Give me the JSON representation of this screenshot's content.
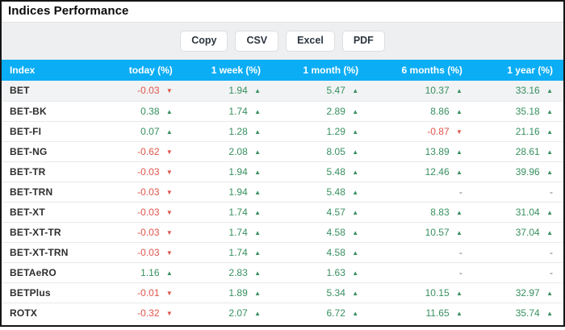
{
  "title": "Indices Performance",
  "toolbar": {
    "buttons": [
      {
        "label": "Copy"
      },
      {
        "label": "CSV"
      },
      {
        "label": "Excel"
      },
      {
        "label": "PDF"
      }
    ]
  },
  "colors": {
    "header_bg": "#0badf5",
    "positive": "#37905f",
    "negative": "#e0554b",
    "toolbar_bg": "#edeff0",
    "highlight_row_bg": "#f1f3f4"
  },
  "table": {
    "columns": [
      {
        "label": "Index"
      },
      {
        "label": "today (%)"
      },
      {
        "label": "1 week (%)"
      },
      {
        "label": "1 month (%)"
      },
      {
        "label": "6 months (%)"
      },
      {
        "label": "1 year (%)"
      }
    ],
    "rows": [
      {
        "index": "BET",
        "highlighted": true,
        "values": [
          {
            "v": "-0.03",
            "dir": "down"
          },
          {
            "v": "1.94",
            "dir": "up"
          },
          {
            "v": "5.47",
            "dir": "up"
          },
          {
            "v": "10.37",
            "dir": "up"
          },
          {
            "v": "33.16",
            "dir": "up"
          }
        ]
      },
      {
        "index": "BET-BK",
        "highlighted": false,
        "values": [
          {
            "v": "0.38",
            "dir": "up"
          },
          {
            "v": "1.74",
            "dir": "up"
          },
          {
            "v": "2.89",
            "dir": "up"
          },
          {
            "v": "8.86",
            "dir": "up"
          },
          {
            "v": "35.18",
            "dir": "up"
          }
        ]
      },
      {
        "index": "BET-FI",
        "highlighted": false,
        "values": [
          {
            "v": "0.07",
            "dir": "up"
          },
          {
            "v": "1.28",
            "dir": "up"
          },
          {
            "v": "1.29",
            "dir": "up"
          },
          {
            "v": "-0.87",
            "dir": "down"
          },
          {
            "v": "21.16",
            "dir": "up"
          }
        ]
      },
      {
        "index": "BET-NG",
        "highlighted": false,
        "values": [
          {
            "v": "-0.62",
            "dir": "down"
          },
          {
            "v": "2.08",
            "dir": "up"
          },
          {
            "v": "8.05",
            "dir": "up"
          },
          {
            "v": "13.89",
            "dir": "up"
          },
          {
            "v": "28.61",
            "dir": "up"
          }
        ]
      },
      {
        "index": "BET-TR",
        "highlighted": false,
        "values": [
          {
            "v": "-0.03",
            "dir": "down"
          },
          {
            "v": "1.94",
            "dir": "up"
          },
          {
            "v": "5.48",
            "dir": "up"
          },
          {
            "v": "12.46",
            "dir": "up"
          },
          {
            "v": "39.96",
            "dir": "up"
          }
        ]
      },
      {
        "index": "BET-TRN",
        "highlighted": false,
        "values": [
          {
            "v": "-0.03",
            "dir": "down"
          },
          {
            "v": "1.94",
            "dir": "up"
          },
          {
            "v": "5.48",
            "dir": "up"
          },
          {
            "v": "-",
            "dir": "none"
          },
          {
            "v": "-",
            "dir": "none"
          }
        ]
      },
      {
        "index": "BET-XT",
        "highlighted": false,
        "values": [
          {
            "v": "-0.03",
            "dir": "down"
          },
          {
            "v": "1.74",
            "dir": "up"
          },
          {
            "v": "4.57",
            "dir": "up"
          },
          {
            "v": "8.83",
            "dir": "up"
          },
          {
            "v": "31.04",
            "dir": "up"
          }
        ]
      },
      {
        "index": "BET-XT-TR",
        "highlighted": false,
        "values": [
          {
            "v": "-0.03",
            "dir": "down"
          },
          {
            "v": "1.74",
            "dir": "up"
          },
          {
            "v": "4.58",
            "dir": "up"
          },
          {
            "v": "10.57",
            "dir": "up"
          },
          {
            "v": "37.04",
            "dir": "up"
          }
        ]
      },
      {
        "index": "BET-XT-TRN",
        "highlighted": false,
        "values": [
          {
            "v": "-0.03",
            "dir": "down"
          },
          {
            "v": "1.74",
            "dir": "up"
          },
          {
            "v": "4.58",
            "dir": "up"
          },
          {
            "v": "-",
            "dir": "none"
          },
          {
            "v": "-",
            "dir": "none"
          }
        ]
      },
      {
        "index": "BETAeRO",
        "highlighted": false,
        "values": [
          {
            "v": "1.16",
            "dir": "up"
          },
          {
            "v": "2.83",
            "dir": "up"
          },
          {
            "v": "1.63",
            "dir": "up"
          },
          {
            "v": "-",
            "dir": "none"
          },
          {
            "v": "-",
            "dir": "none"
          }
        ]
      },
      {
        "index": "BETPlus",
        "highlighted": false,
        "values": [
          {
            "v": "-0.01",
            "dir": "down"
          },
          {
            "v": "1.89",
            "dir": "up"
          },
          {
            "v": "5.34",
            "dir": "up"
          },
          {
            "v": "10.15",
            "dir": "up"
          },
          {
            "v": "32.97",
            "dir": "up"
          }
        ]
      },
      {
        "index": "ROTX",
        "highlighted": false,
        "values": [
          {
            "v": "-0.32",
            "dir": "down"
          },
          {
            "v": "2.07",
            "dir": "up"
          },
          {
            "v": "6.72",
            "dir": "up"
          },
          {
            "v": "11.65",
            "dir": "up"
          },
          {
            "v": "35.74",
            "dir": "up"
          }
        ]
      }
    ]
  }
}
